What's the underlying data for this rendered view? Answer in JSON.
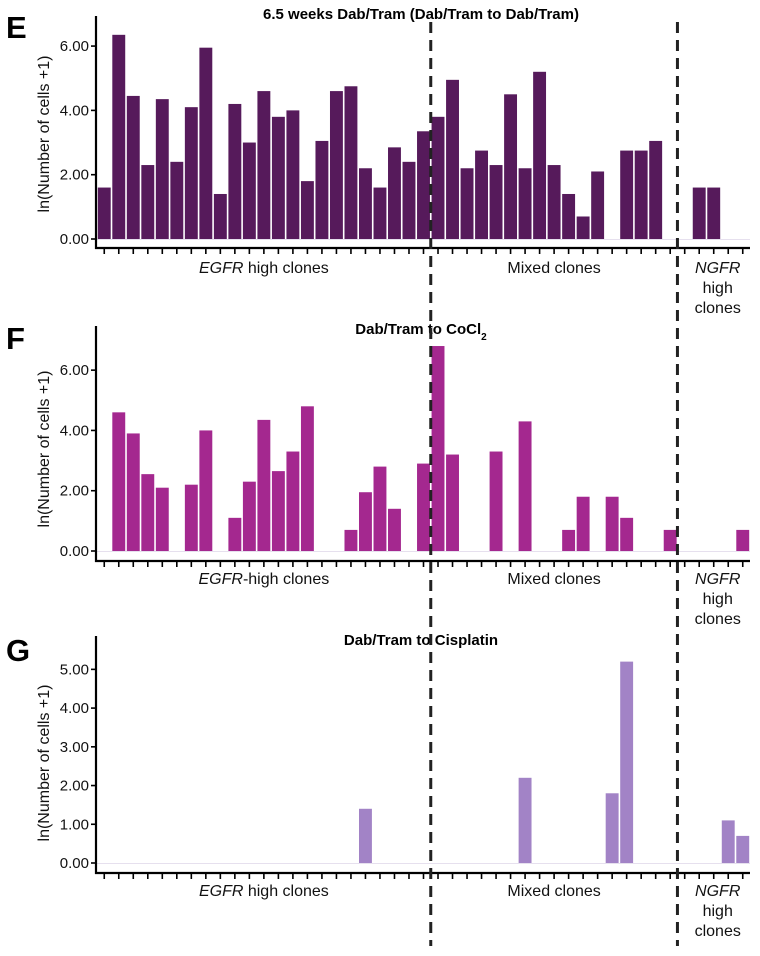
{
  "chart_data": [
    {
      "type": "bar",
      "panel_letter": "E",
      "title": "6.5 weeks Dab/Tram (Dab/Tram to Dab/Tram)",
      "title_sub": "",
      "ylabel": "ln(Number of cells +1)",
      "ylim": [
        0,
        6.5
      ],
      "yticks": [
        "0.00",
        "2.00",
        "4.00",
        "6.00"
      ],
      "ytick_values": [
        0,
        2,
        4,
        6
      ],
      "color": "#561A5B",
      "n_bars": 45,
      "values": [
        1.6,
        6.35,
        4.45,
        2.3,
        4.35,
        2.4,
        4.1,
        5.95,
        1.4,
        4.2,
        3.0,
        4.6,
        3.8,
        4.0,
        1.8,
        3.05,
        4.6,
        4.75,
        2.2,
        1.6,
        2.85,
        2.4,
        3.35,
        3.8,
        4.95,
        2.2,
        2.75,
        2.3,
        4.5,
        2.2,
        5.2,
        2.3,
        1.4,
        0.7,
        2.1,
        0,
        2.75,
        2.75,
        3.05,
        0,
        0,
        1.6,
        1.6,
        0,
        0
      ],
      "groups": [
        {
          "italic": "EGFR",
          "rest": " high clones",
          "lines": []
        },
        {
          "italic": "",
          "rest": "Mixed clones",
          "lines": []
        },
        {
          "italic": "NGFR",
          "rest": "",
          "lines": [
            "high",
            "clones"
          ]
        }
      ],
      "group_boundaries_after_bar": [
        22,
        39
      ]
    },
    {
      "type": "bar",
      "panel_letter": "F",
      "title": "Dab/Tram to CoCl",
      "title_sub": "2",
      "ylabel": "ln(Number of cells +1)",
      "ylim": [
        0,
        7.0
      ],
      "yticks": [
        "0.00",
        "2.00",
        "4.00",
        "6.00"
      ],
      "ytick_values": [
        0,
        2,
        4,
        6
      ],
      "color": "#A4288F",
      "n_bars": 45,
      "values": [
        0,
        4.6,
        3.9,
        2.55,
        2.1,
        0,
        2.2,
        4.0,
        0,
        1.1,
        2.3,
        4.35,
        2.65,
        3.3,
        4.8,
        0,
        0,
        0.7,
        1.95,
        2.8,
        1.4,
        0,
        2.9,
        6.8,
        3.2,
        0,
        0,
        3.3,
        0,
        4.3,
        0,
        0,
        0.7,
        1.8,
        0,
        1.8,
        1.1,
        0,
        0,
        0.7,
        0,
        0,
        0,
        0,
        0.7
      ],
      "groups": [
        {
          "italic": "EGFR",
          "rest": "-high clones",
          "lines": []
        },
        {
          "italic": "",
          "rest": "Mixed clones",
          "lines": []
        },
        {
          "italic": "NGFR",
          "rest": "",
          "lines": [
            "high",
            "clones"
          ]
        }
      ],
      "group_boundaries_after_bar": [
        22,
        39
      ]
    },
    {
      "type": "bar",
      "panel_letter": "G",
      "title": "Dab/Tram to Cisplatin",
      "title_sub": "",
      "ylabel": "ln(Number of cells +1)",
      "ylim": [
        0,
        5.5
      ],
      "yticks": [
        "0.00",
        "1.00",
        "2.00",
        "3.00",
        "4.00",
        "5.00"
      ],
      "ytick_values": [
        0,
        1,
        2,
        3,
        4,
        5
      ],
      "color": "#A283C6",
      "n_bars": 45,
      "values": [
        0,
        0,
        0,
        0,
        0,
        0,
        0,
        0,
        0,
        0,
        0,
        0,
        0,
        0,
        0,
        0,
        0,
        0,
        1.4,
        0,
        0,
        0,
        0,
        0,
        0,
        0,
        0,
        0,
        0,
        2.2,
        0,
        0,
        0,
        0,
        0,
        1.8,
        5.2,
        0,
        0,
        0,
        0,
        0,
        0,
        1.1,
        0.7
      ],
      "groups": [
        {
          "italic": "EGFR",
          "rest": " high clones",
          "lines": []
        },
        {
          "italic": "",
          "rest": "Mixed clones",
          "lines": []
        },
        {
          "italic": "NGFR",
          "rest": "",
          "lines": [
            "high",
            "clones"
          ]
        }
      ],
      "group_boundaries_after_bar": [
        22,
        39
      ]
    }
  ]
}
